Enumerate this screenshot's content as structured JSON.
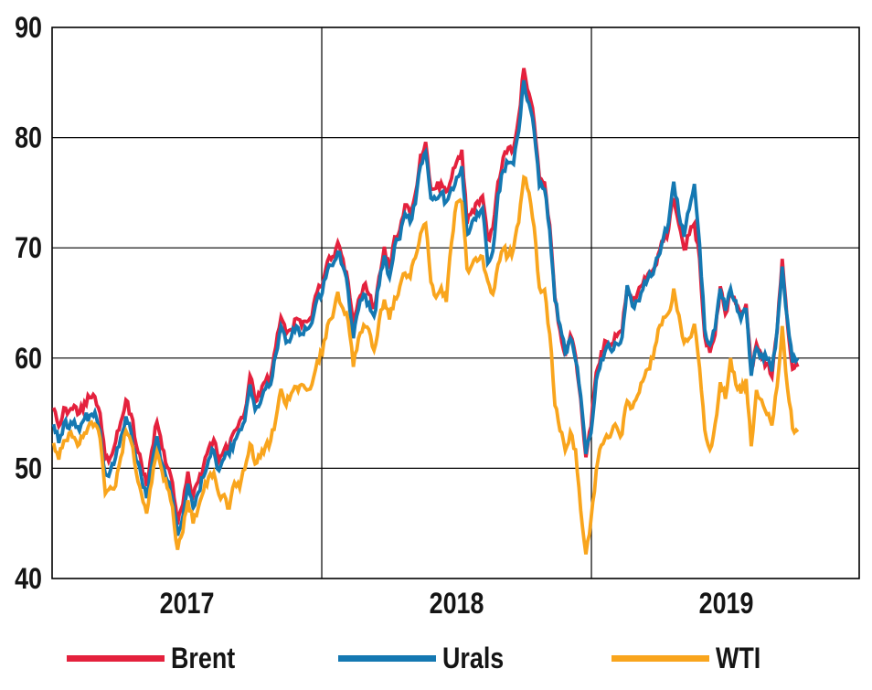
{
  "chart_data": {
    "type": "line",
    "title": "",
    "xlabel": "",
    "ylabel": "",
    "ylim": [
      40,
      90
    ],
    "yticks": [
      40,
      50,
      60,
      70,
      80,
      90
    ],
    "x_range": [
      2017.0,
      2019.993
    ],
    "year_gridlines": [
      2018,
      2019
    ],
    "year_labels": [
      {
        "label": "2017",
        "center": 2017.5
      },
      {
        "label": "2018",
        "center": 2018.5
      },
      {
        "label": "2019",
        "center": 2019.5
      }
    ],
    "grid": true,
    "legend_position": "bottom",
    "axis_color": "#000000",
    "label_color": "#151515",
    "line_width": 3.8,
    "texture_jitter": 0.45,
    "x_time": {
      "start_year": 2017,
      "start_day_of_year": 2,
      "step_days": 7,
      "points": 145
    },
    "series": [
      {
        "name": "Brent",
        "color": "#e4213d",
        "values": [
          55.5,
          53.8,
          55.5,
          55.2,
          55.7,
          55.0,
          56.0,
          56.4,
          56.5,
          55.0,
          50.9,
          51.0,
          52.4,
          54.2,
          56.2,
          54.9,
          52.1,
          50.5,
          48.4,
          51.6,
          54.2,
          51.8,
          50.1,
          48.7,
          44.9,
          46.7,
          49.7,
          47.5,
          48.8,
          50.2,
          51.8,
          52.6,
          50.7,
          51.7,
          52.0,
          53.4,
          54.3,
          55.1,
          58.4,
          56.0,
          56.6,
          57.9,
          58.3,
          61.0,
          63.7,
          62.2,
          62.6,
          63.6,
          62.9,
          63.3,
          63.8,
          66.0,
          66.6,
          68.8,
          69.2,
          70.5,
          69.0,
          66.9,
          62.7,
          65.3,
          66.6,
          65.8,
          64.6,
          67.4,
          70.1,
          68.1,
          71.0,
          71.6,
          73.9,
          73.1,
          74.9,
          78.4,
          79.6,
          75.4,
          75.4,
          75.9,
          75.1,
          76.3,
          77.8,
          78.9,
          72.2,
          73.4,
          74.2,
          74.7,
          70.8,
          71.8,
          76.0,
          78.2,
          79.1,
          79.0,
          81.9,
          86.3,
          84.0,
          81.4,
          76.4,
          75.9,
          72.1,
          65.5,
          62.5,
          60.2,
          62.1,
          60.2,
          56.3,
          51.0,
          53.8,
          58.7,
          60.6,
          61.5,
          61.3,
          62.0,
          62.4,
          66.5,
          65.2,
          65.9,
          66.7,
          67.6,
          68.0,
          69.4,
          70.6,
          71.7,
          74.5,
          72.1,
          69.9,
          71.2,
          72.2,
          69.0,
          62.0,
          60.5,
          62.1,
          66.5,
          64.0,
          66.0,
          64.9,
          63.8,
          64.9,
          58.9,
          61.3,
          60.0,
          59.5,
          58.3,
          62.4,
          69.0,
          63.1,
          59.0,
          59.2
        ]
      },
      {
        "name": "Urals",
        "color": "#1478b2",
        "values": [
          54.0,
          52.3,
          54.1,
          53.6,
          54.3,
          53.4,
          54.5,
          54.8,
          55.1,
          53.4,
          49.5,
          49.8,
          51.0,
          52.8,
          54.7,
          53.3,
          50.7,
          49.2,
          47.3,
          50.3,
          52.9,
          50.4,
          48.9,
          47.3,
          43.9,
          45.6,
          48.6,
          46.4,
          47.8,
          49.2,
          50.8,
          51.6,
          49.8,
          50.9,
          51.2,
          52.5,
          53.5,
          54.3,
          57.6,
          55.3,
          55.9,
          57.2,
          57.6,
          60.3,
          62.9,
          61.4,
          61.9,
          62.9,
          62.2,
          62.6,
          63.2,
          65.4,
          65.9,
          68.0,
          68.4,
          69.6,
          68.3,
          66.1,
          61.8,
          64.4,
          65.8,
          65.0,
          63.8,
          66.6,
          69.3,
          67.3,
          70.2,
          70.8,
          73.1,
          72.3,
          74.0,
          77.5,
          78.7,
          74.5,
          74.4,
          75.0,
          74.2,
          75.4,
          76.4,
          77.4,
          71.2,
          72.4,
          73.2,
          73.6,
          68.6,
          69.7,
          74.9,
          77.0,
          77.7,
          77.6,
          80.6,
          85.2,
          83.1,
          80.6,
          75.6,
          75.3,
          71.6,
          65.2,
          63.0,
          60.4,
          61.8,
          59.8,
          56.6,
          51.3,
          53.2,
          58.0,
          59.9,
          61.0,
          60.6,
          61.3,
          61.9,
          66.6,
          64.7,
          65.2,
          66.2,
          67.2,
          67.6,
          69.2,
          70.9,
          72.3,
          76.0,
          73.0,
          71.0,
          73.5,
          75.8,
          70.3,
          62.6,
          61.2,
          62.6,
          66.3,
          64.3,
          66.3,
          65.2,
          63.5,
          64.4,
          58.4,
          60.9,
          60.3,
          59.9,
          58.8,
          62.6,
          68.3,
          63.5,
          59.6,
          60.0
        ]
      },
      {
        "name": "WTI",
        "color": "#f9a51d",
        "values": [
          52.3,
          50.8,
          52.5,
          53.2,
          52.8,
          52.2,
          53.2,
          54.1,
          54.0,
          52.7,
          47.7,
          48.3,
          48.4,
          51.0,
          53.4,
          52.4,
          49.6,
          47.7,
          45.9,
          48.7,
          51.5,
          49.7,
          48.2,
          46.5,
          42.6,
          44.2,
          47.1,
          45.0,
          46.4,
          47.9,
          49.2,
          49.6,
          47.6,
          47.6,
          46.4,
          48.7,
          48.2,
          49.9,
          52.2,
          50.4,
          51.0,
          52.0,
          52.5,
          54.4,
          57.2,
          55.7,
          56.8,
          57.4,
          57.6,
          57.1,
          57.6,
          59.7,
          60.4,
          63.0,
          63.7,
          66.0,
          64.5,
          63.4,
          59.2,
          61.8,
          63.0,
          62.6,
          60.7,
          63.4,
          65.3,
          63.5,
          65.5,
          66.5,
          67.7,
          67.3,
          69.1,
          71.3,
          72.2,
          66.9,
          65.5,
          66.4,
          65.1,
          70.5,
          74.1,
          74.1,
          68.1,
          68.5,
          68.8,
          69.2,
          67.0,
          65.8,
          68.5,
          69.9,
          69.3,
          69.9,
          72.3,
          76.4,
          75.0,
          71.9,
          66.4,
          66.2,
          62.2,
          55.7,
          53.4,
          51.6,
          53.3,
          51.7,
          46.2,
          42.2,
          45.4,
          49.8,
          52.1,
          53.0,
          53.3,
          53.7,
          53.1,
          56.1,
          55.5,
          56.6,
          57.9,
          59.0,
          60.0,
          62.6,
          63.7,
          64.1,
          66.3,
          63.9,
          61.4,
          61.8,
          63.1,
          59.1,
          53.5,
          51.7,
          54.0,
          57.8,
          56.3,
          60.0,
          57.6,
          56.8,
          58.1,
          52.0,
          57.1,
          56.2,
          54.9,
          53.9,
          57.4,
          62.9,
          57.3,
          53.6,
          53.3
        ]
      }
    ]
  },
  "background": "#ffffff"
}
